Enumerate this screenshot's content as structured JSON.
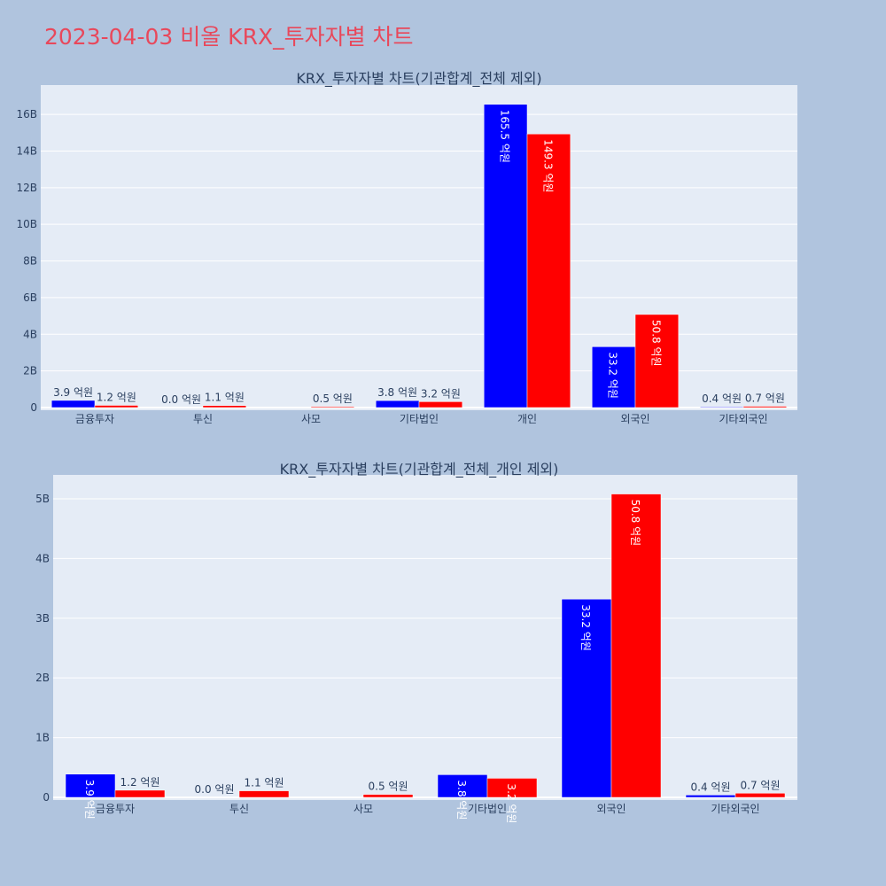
{
  "page": {
    "title": "2023-04-03 비올 KRX_투자자별 차트"
  },
  "chart_data": [
    {
      "type": "bar",
      "title": "KRX_투자자별 차트(기관합계_전체 제외)",
      "categories": [
        "금융투자",
        "투신",
        "사모",
        "기타법인",
        "개인",
        "외국인",
        "기타외국인"
      ],
      "series": [
        {
          "color": "#0000ff",
          "values": [
            390000000,
            0,
            null,
            380000000,
            16550000000,
            3320000000,
            40000000
          ],
          "labels": [
            "3.9 억원",
            "0.0 억원",
            "",
            "3.8 억원",
            "165.5 억원",
            "33.2 억원",
            "0.4 억원"
          ]
        },
        {
          "color": "#ff0000",
          "values": [
            120000000,
            110000000,
            50000000,
            320000000,
            14930000000,
            5080000000,
            70000000
          ],
          "labels": [
            "1.2 억원",
            "1.1 억원",
            "0.5 억원",
            "3.2 억원",
            "149.3 억원",
            "50.8 억원",
            "0.7 억원"
          ]
        }
      ],
      "ylim": [
        0,
        17600000000
      ],
      "yticks": [
        0,
        2000000000,
        4000000000,
        6000000000,
        8000000000,
        10000000000,
        12000000000,
        14000000000,
        16000000000
      ],
      "ytick_labels": [
        "0",
        "2B",
        "4B",
        "6B",
        "8B",
        "10B",
        "12B",
        "14B",
        "16B"
      ],
      "grid": true
    },
    {
      "type": "bar",
      "title": "KRX_투자자별 차트(기관합계_전체_개인 제외)",
      "categories": [
        "금융투자",
        "투신",
        "사모",
        "기타법인",
        "외국인",
        "기타외국인"
      ],
      "series": [
        {
          "color": "#0000ff",
          "values": [
            390000000,
            0,
            null,
            380000000,
            3320000000,
            40000000
          ],
          "labels": [
            "3.9 억원",
            "0.0 억원",
            "",
            "3.8 억원",
            "33.2 억원",
            "0.4 억원"
          ]
        },
        {
          "color": "#ff0000",
          "values": [
            120000000,
            110000000,
            50000000,
            320000000,
            5080000000,
            70000000
          ],
          "labels": [
            "1.2 억원",
            "1.1 억원",
            "0.5 억원",
            "3.2 억원",
            "50.8 억원",
            "0.7 억원"
          ]
        }
      ],
      "ylim": [
        0,
        5400000000
      ],
      "yticks": [
        0,
        1000000000,
        2000000000,
        3000000000,
        4000000000,
        5000000000
      ],
      "ytick_labels": [
        "0",
        "1B",
        "2B",
        "3B",
        "4B",
        "5B"
      ],
      "grid": true
    }
  ]
}
